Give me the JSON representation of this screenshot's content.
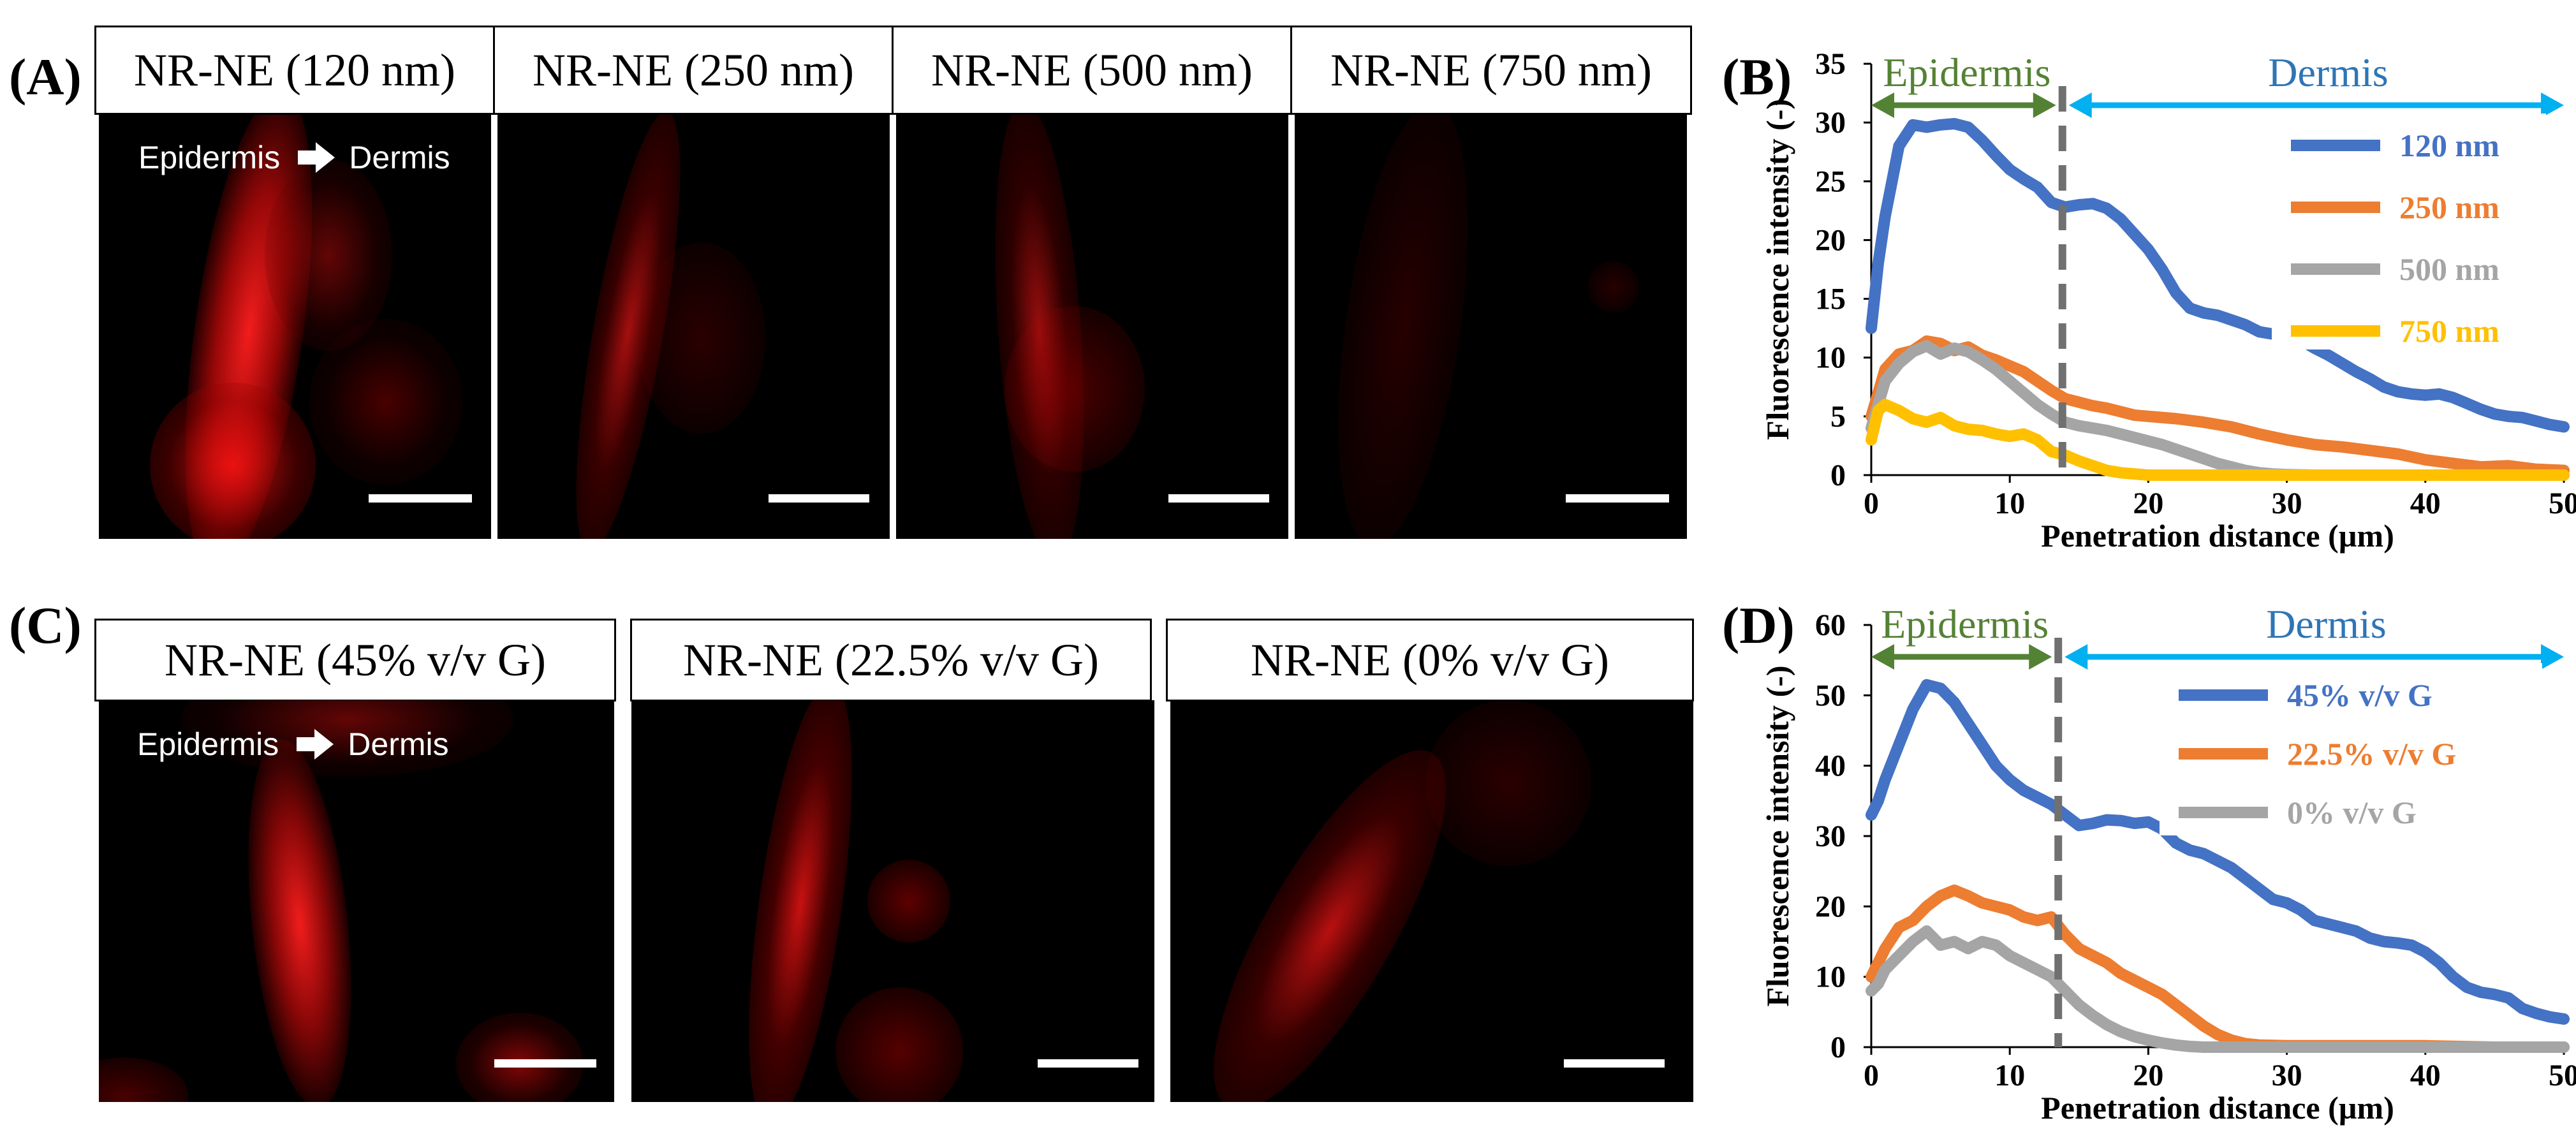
{
  "panels": {
    "A": "(A)",
    "B": "(B)",
    "C": "(C)",
    "D": "(D)"
  },
  "top_row": {
    "titles": [
      "NR-NE (120 nm)",
      "NR-NE (250 nm)",
      "NR-NE (500 nm)",
      "NR-NE (750 nm)"
    ],
    "overlay_left": "Epidermis",
    "overlay_right": "Dermis",
    "fluorescence_color": "#ff1a1a"
  },
  "bottom_row": {
    "titles": [
      "NR-NE (45% v/v G)",
      "NR-NE (22.5% v/v G)",
      "NR-NE (0% v/v G)"
    ],
    "overlay_left": "Epidermis",
    "overlay_right": "Dermis"
  },
  "chart_data": [
    {
      "type": "line",
      "panel": "B",
      "xlabel": "Penetration distance (µm)",
      "ylabel": "Fluorescence intensity (-)",
      "xlim": [
        0,
        50
      ],
      "ylim": [
        0,
        35
      ],
      "xticks": [
        0,
        10,
        20,
        30,
        40,
        50
      ],
      "yticks": [
        0,
        5,
        10,
        15,
        20,
        25,
        30,
        35
      ],
      "grid": false,
      "legend_position": "top-right",
      "boundary_x": 13.8,
      "region_labels": {
        "left": "Epidermis",
        "right": "Dermis",
        "left_color": "#548235",
        "right_color": "#2e75b6",
        "left_arrow_color": "#548235",
        "right_arrow_color": "#00b0f0"
      },
      "series": [
        {
          "name": "120 nm",
          "color": "#4472c4",
          "x": [
            0,
            0.5,
            1,
            2,
            3,
            4,
            5,
            6,
            7,
            8,
            9,
            10,
            11,
            12,
            13,
            14,
            15,
            16,
            17,
            18,
            19,
            20,
            21,
            22,
            23,
            24,
            25,
            26,
            27,
            28,
            29,
            30,
            31,
            32,
            33,
            34,
            35,
            36,
            37,
            38,
            39,
            40,
            41,
            42,
            43,
            44,
            45,
            46,
            47,
            48,
            49,
            50
          ],
          "y": [
            12.5,
            18,
            22,
            28,
            29.8,
            29.6,
            29.8,
            29.9,
            29.6,
            28.5,
            27.2,
            26,
            25.2,
            24.5,
            23.2,
            22.8,
            23,
            23.1,
            22.7,
            21.8,
            20.5,
            19.2,
            17.5,
            15.5,
            14.2,
            13.8,
            13.6,
            13.2,
            12.8,
            12.2,
            12,
            11.8,
            11.5,
            10.8,
            10.2,
            9.5,
            8.8,
            8.2,
            7.5,
            7.1,
            6.9,
            6.8,
            6.9,
            6.6,
            6.1,
            5.6,
            5.2,
            5.0,
            4.9,
            4.6,
            4.3,
            4.1
          ]
        },
        {
          "name": "250 nm",
          "color": "#ed7d31",
          "x": [
            0,
            0.5,
            1,
            2,
            3,
            4,
            5,
            6,
            7,
            8,
            9,
            10,
            11,
            12,
            13,
            14,
            15,
            16,
            17,
            18,
            19,
            20,
            22,
            24,
            26,
            28,
            30,
            32,
            34,
            36,
            38,
            40,
            42,
            44,
            46,
            48,
            50
          ],
          "y": [
            5,
            7,
            9,
            10.3,
            10.6,
            11.4,
            11.2,
            10.6,
            10.9,
            10.2,
            9.8,
            9.3,
            8.8,
            8.0,
            7.2,
            6.5,
            6.2,
            5.9,
            5.7,
            5.4,
            5.1,
            5.0,
            4.8,
            4.5,
            4.1,
            3.5,
            3.0,
            2.6,
            2.4,
            2.1,
            1.8,
            1.3,
            1.0,
            0.7,
            0.8,
            0.5,
            0.4
          ]
        },
        {
          "name": "500 nm",
          "color": "#a5a5a5",
          "x": [
            0,
            0.5,
            1,
            2,
            3,
            4,
            5,
            6,
            7,
            8,
            9,
            10,
            11,
            12,
            13,
            14,
            15,
            16,
            17,
            18,
            19,
            20,
            21,
            22,
            23,
            24,
            25,
            26,
            27,
            28,
            29,
            30,
            32,
            34,
            36,
            40,
            50
          ],
          "y": [
            4,
            6,
            8,
            9.5,
            10.5,
            11,
            10.3,
            10.8,
            10.5,
            9.8,
            9.0,
            8.0,
            7.0,
            6.0,
            5.2,
            4.5,
            4.2,
            4.0,
            3.8,
            3.5,
            3.2,
            2.9,
            2.6,
            2.2,
            1.8,
            1.4,
            1.0,
            0.7,
            0.4,
            0.2,
            0.1,
            0.05,
            0,
            0,
            0,
            0,
            0
          ]
        },
        {
          "name": "750 nm",
          "color": "#ffc000",
          "x": [
            0,
            0.5,
            1,
            2,
            3,
            4,
            5,
            6,
            7,
            8,
            9,
            10,
            11,
            12,
            13,
            14,
            15,
            16,
            17,
            18,
            20,
            25,
            30,
            40,
            50
          ],
          "y": [
            3,
            5.5,
            6.0,
            5.5,
            4.8,
            4.5,
            4.9,
            4.2,
            3.9,
            3.8,
            3.5,
            3.3,
            3.5,
            3.0,
            2.0,
            1.7,
            1.2,
            0.8,
            0.4,
            0.2,
            0,
            0,
            0,
            0,
            0
          ]
        }
      ]
    },
    {
      "type": "line",
      "panel": "D",
      "xlabel": "Penetration distance (µm)",
      "ylabel": "Fluorescence intensity (-)",
      "xlim": [
        0,
        50
      ],
      "ylim": [
        0,
        60
      ],
      "xticks": [
        0,
        10,
        20,
        30,
        40,
        50
      ],
      "yticks": [
        0,
        10,
        20,
        30,
        40,
        50,
        60
      ],
      "grid": false,
      "legend_position": "top-right",
      "boundary_x": 13.5,
      "region_labels": {
        "left": "Epidermis",
        "right": "Dermis",
        "left_color": "#548235",
        "right_color": "#2e75b6",
        "left_arrow_color": "#548235",
        "right_arrow_color": "#00b0f0"
      },
      "series": [
        {
          "name": "45% v/v G",
          "color": "#4472c4",
          "x": [
            0,
            0.5,
            1,
            2,
            3,
            4,
            5,
            6,
            7,
            8,
            9,
            10,
            11,
            12,
            13,
            14,
            15,
            16,
            17,
            18,
            19,
            20,
            21,
            22,
            23,
            24,
            25,
            26,
            27,
            28,
            29,
            30,
            31,
            32,
            33,
            34,
            35,
            36,
            37,
            38,
            39,
            40,
            41,
            42,
            43,
            44,
            45,
            46,
            47,
            48,
            49,
            50
          ],
          "y": [
            33,
            35,
            38,
            43,
            48,
            51.5,
            51,
            49,
            46,
            43,
            40,
            38,
            36.5,
            35.5,
            34.5,
            33,
            31.5,
            31.8,
            32.3,
            32.2,
            31.8,
            32,
            31,
            29,
            28,
            27.5,
            26.5,
            25.5,
            24,
            22.5,
            21,
            20.5,
            19.5,
            18,
            17.5,
            17,
            16.5,
            15.5,
            15,
            14.8,
            14.5,
            13.5,
            12,
            10,
            8.5,
            7.8,
            7.5,
            7.0,
            5.5,
            4.8,
            4.3,
            4.0
          ]
        },
        {
          "name": "22.5% v/v G",
          "color": "#ed7d31",
          "x": [
            0,
            0.5,
            1,
            2,
            3,
            4,
            5,
            6,
            7,
            8,
            9,
            10,
            11,
            12,
            13,
            14,
            15,
            16,
            17,
            18,
            19,
            20,
            21,
            22,
            23,
            24,
            25,
            26,
            27,
            28,
            30,
            35,
            40,
            45,
            50
          ],
          "y": [
            10,
            12,
            14,
            17,
            18,
            20,
            21.5,
            22.3,
            21.5,
            20.5,
            20,
            19.5,
            18.5,
            18,
            18.5,
            16,
            14,
            13,
            12,
            10.5,
            9.5,
            8.5,
            7.5,
            6.0,
            4.5,
            3.0,
            1.8,
            1.0,
            0.5,
            0.3,
            0.2,
            0.2,
            0.2,
            0,
            0
          ]
        },
        {
          "name": "0% v/v G",
          "color": "#a5a5a5",
          "x": [
            0,
            0.5,
            1,
            2,
            3,
            4,
            5,
            6,
            7,
            8,
            9,
            10,
            11,
            12,
            13,
            14,
            15,
            16,
            17,
            18,
            19,
            20,
            21,
            22,
            23,
            24,
            25,
            30,
            40,
            50
          ],
          "y": [
            8,
            9,
            11,
            13,
            15,
            16.5,
            14.5,
            15,
            14,
            15,
            14.5,
            13,
            12,
            11,
            10,
            8,
            6,
            4.5,
            3.2,
            2.2,
            1.5,
            1.0,
            0.6,
            0.3,
            0.1,
            0,
            0,
            0,
            0,
            0
          ]
        }
      ]
    }
  ]
}
